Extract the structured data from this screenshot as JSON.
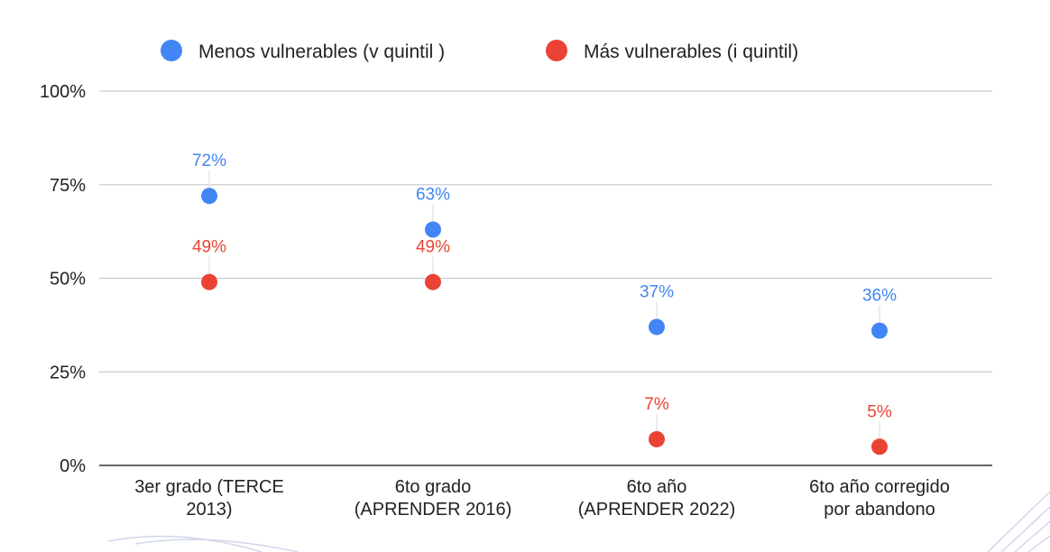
{
  "chart_data": {
    "type": "scatter",
    "categories": [
      [
        "3er grado (TERCE",
        "2013)"
      ],
      [
        "6to grado",
        "(APRENDER 2016)"
      ],
      [
        "6to año",
        "(APRENDER 2022)"
      ],
      [
        "6to año corregido",
        "por abandono"
      ]
    ],
    "series": [
      {
        "name": "Menos vulnerables (v quintil )",
        "color": "#4285f4",
        "values": [
          72,
          63,
          37,
          36
        ],
        "labels": [
          "72%",
          "63%",
          "37%",
          "36%"
        ]
      },
      {
        "name": "Más vulnerables (i quintil)",
        "color": "#ea4335",
        "values": [
          49,
          49,
          7,
          5
        ],
        "labels": [
          "49%",
          "49%",
          "7%",
          "5%"
        ]
      }
    ],
    "yticks": [
      0,
      25,
      50,
      75,
      100
    ],
    "ytick_labels": [
      "0%",
      "25%",
      "50%",
      "75%",
      "100%"
    ],
    "ylim": [
      0,
      100
    ],
    "legend_position": "top-center",
    "grid": true
  }
}
